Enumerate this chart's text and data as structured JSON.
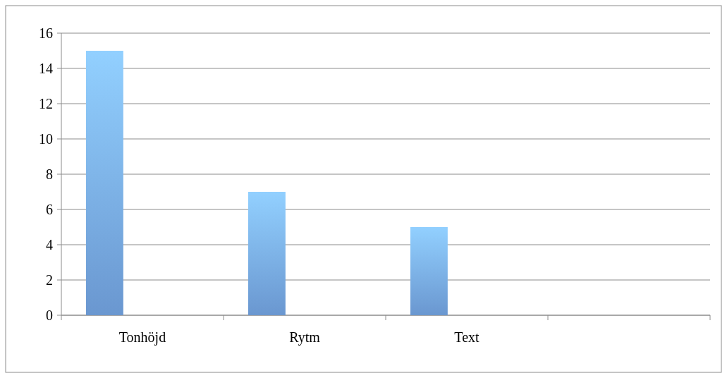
{
  "chart_data": {
    "type": "bar",
    "categories": [
      "Tonhöjd",
      "Rytm",
      "Text",
      null
    ],
    "values": [
      15,
      7,
      5,
      null
    ],
    "color": "#7aaef0",
    "ylim": [
      0,
      16
    ],
    "yticks": [
      0,
      2,
      4,
      6,
      8,
      10,
      12,
      14,
      16
    ],
    "grid": "y"
  }
}
